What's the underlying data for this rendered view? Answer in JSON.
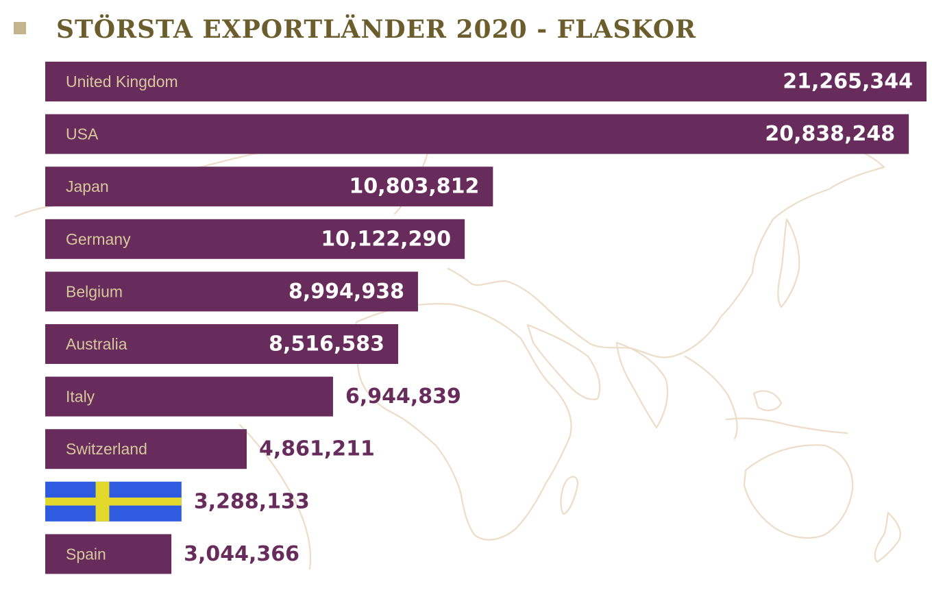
{
  "title": "STÖRSTA EXPORTLÄNDER 2020 - FLASKOR",
  "colors": {
    "bar": "#672c5b",
    "title": "#6b5d2c",
    "title_square": "#c3b48e",
    "label": "#d7c79d",
    "value_inside": "#ffffff",
    "value_outside": "#672c5b",
    "map_outline": "#ecdcc8",
    "flag_blue": "#2f5be0",
    "flag_yellow": "#e3d92c"
  },
  "background": {
    "icon": "world-map-outline"
  },
  "chart_data": {
    "type": "bar",
    "orientation": "horizontal",
    "title": "STÖRSTA EXPORTLÄNDER 2020 - FLASKOR",
    "categories": [
      "United Kingdom",
      "USA",
      "Japan",
      "Germany",
      "Belgium",
      "Australia",
      "Italy",
      "Switzerland",
      "Sweden",
      "Spain"
    ],
    "category_labels": [
      "United Kingdom",
      "USA",
      "Japan",
      "Germany",
      "Belgium",
      "Australia",
      "Italy",
      "Switzerland",
      "",
      "Spain"
    ],
    "category_icons": [
      "",
      "",
      "",
      "",
      "",
      "",
      "",
      "",
      "sweden-flag-icon",
      ""
    ],
    "values": [
      21265344,
      20838248,
      10803812,
      10122290,
      8994938,
      8516583,
      6944839,
      4861211,
      3288133,
      3044366
    ],
    "value_labels": [
      "21,265,344",
      "20,838,248",
      "10,803,812",
      "10,122,290",
      "8,994,938",
      "8,516,583",
      "6,944,839",
      "4,861,211",
      "3,288,133",
      "3,044,366"
    ],
    "xlabel": "",
    "ylabel": "",
    "axes_visible": false,
    "grid": false,
    "legend": false
  }
}
